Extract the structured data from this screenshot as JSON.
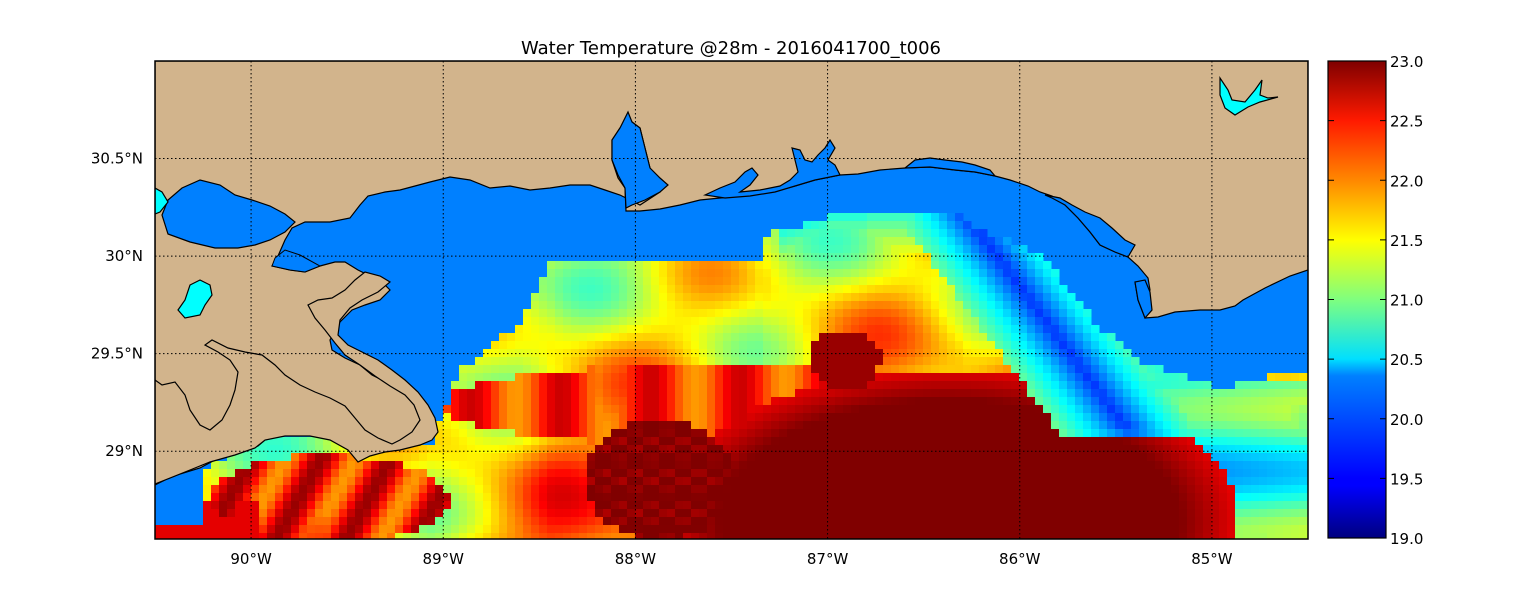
{
  "title": "Water Temperature @28m - 2016041700_t006",
  "map": {
    "lon_range": [
      -90.5,
      -84.5
    ],
    "lat_range": [
      28.55,
      31.0
    ],
    "lon_ticks": [
      {
        "value": -90,
        "label": "90°W"
      },
      {
        "value": -89,
        "label": "89°W"
      },
      {
        "value": -88,
        "label": "88°W"
      },
      {
        "value": -87,
        "label": "87°W"
      },
      {
        "value": -86,
        "label": "86°W"
      },
      {
        "value": -85,
        "label": "85°W"
      }
    ],
    "lat_ticks": [
      {
        "value": 30.5,
        "label": "30.5°N"
      },
      {
        "value": 30.0,
        "label": "30°N"
      },
      {
        "value": 29.5,
        "label": "29.5°N"
      },
      {
        "value": 29.0,
        "label": "29°N"
      }
    ],
    "gridlines": "dotted",
    "colors": {
      "land": "#d2b48c",
      "water_no_data": "#0080ff",
      "lakes": "#00ffff",
      "coastline": "#000000"
    }
  },
  "colorbar": {
    "min": 19.0,
    "max": 23.0,
    "colormap": "jet",
    "ticks": [
      {
        "value": 23.0,
        "label": "23.0"
      },
      {
        "value": 22.5,
        "label": "22.5"
      },
      {
        "value": 22.0,
        "label": "22.0"
      },
      {
        "value": 21.5,
        "label": "21.5"
      },
      {
        "value": 21.0,
        "label": "21.0"
      },
      {
        "value": 20.5,
        "label": "20.5"
      },
      {
        "value": 20.0,
        "label": "20.0"
      },
      {
        "value": 19.5,
        "label": "19.5"
      },
      {
        "value": 19.0,
        "label": "19.0"
      }
    ]
  }
}
